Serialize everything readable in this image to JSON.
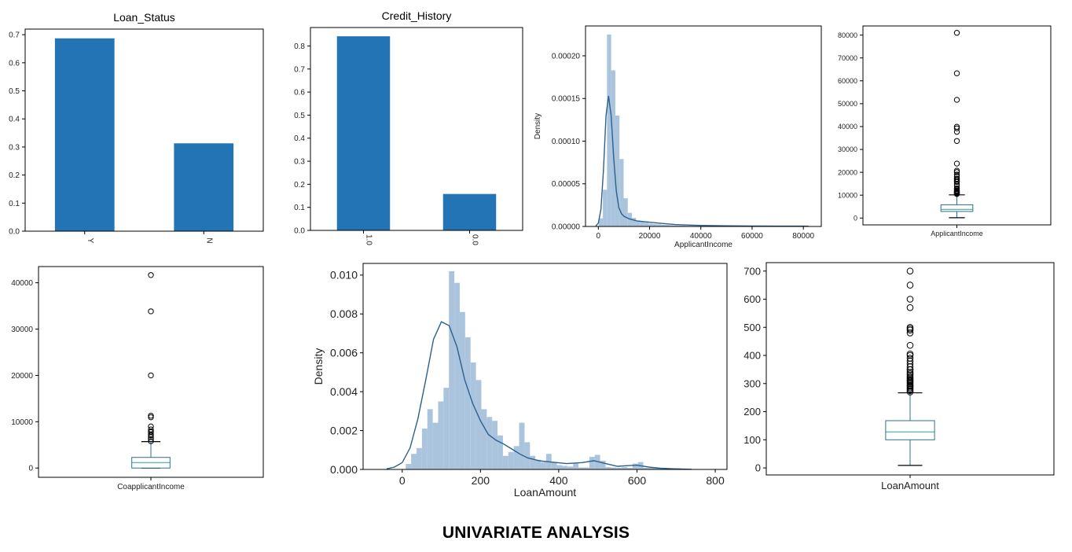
{
  "caption": "UNIVARIATE ANALYSIS",
  "colors": {
    "bar": "#2274b5",
    "hist": "#a9c4dc",
    "kde": "#2d5f8f",
    "box": "#2e6f8e",
    "median": "#2aa198",
    "axis": "#000000",
    "text": "#222222"
  },
  "chart_data": [
    {
      "id": "loan-status",
      "type": "bar",
      "title": "Loan_Status",
      "categories": [
        "Y",
        "N"
      ],
      "values": [
        0.687,
        0.313
      ],
      "ylim": [
        0,
        0.72
      ],
      "yticks": [
        0.0,
        0.1,
        0.2,
        0.3,
        0.4,
        0.5,
        0.6,
        0.7
      ],
      "ytick_labels": [
        "0.0",
        "0.1",
        "0.2",
        "0.3",
        "0.4",
        "0.5",
        "0.6",
        "0.7"
      ],
      "xtick_rotation": 90,
      "xlabel": "",
      "ylabel": ""
    },
    {
      "id": "credit-history",
      "type": "bar",
      "title": "Credit_History",
      "categories": [
        "1.0",
        "0.0"
      ],
      "values": [
        0.842,
        0.158
      ],
      "ylim": [
        0,
        0.88
      ],
      "yticks": [
        0.0,
        0.1,
        0.2,
        0.3,
        0.4,
        0.5,
        0.6,
        0.7,
        0.8
      ],
      "ytick_labels": [
        "0.0",
        "0.1",
        "0.2",
        "0.3",
        "0.4",
        "0.5",
        "0.6",
        "0.7",
        "0.8"
      ],
      "xtick_rotation": 90,
      "xlabel": "",
      "ylabel": ""
    },
    {
      "id": "applicant-income-dist",
      "type": "histogram",
      "title": "",
      "xlabel": "ApplicantIncome",
      "ylabel": "Density",
      "xlim": [
        -5000,
        87000
      ],
      "ylim": [
        0,
        0.000235
      ],
      "xticks": [
        0,
        20000,
        40000,
        60000,
        80000
      ],
      "xtick_labels": [
        "0",
        "20000",
        "40000",
        "60000",
        "80000"
      ],
      "yticks": [
        0,
        5e-05,
        0.0001,
        0.00015,
        0.0002
      ],
      "ytick_labels": [
        "0.00000",
        "0.00005",
        "0.00010",
        "0.00015",
        "0.00020"
      ],
      "bins": {
        "start": 150,
        "width": 1620,
        "heights": [
          9.5e-06,
          4.3e-05,
          0.000225,
          0.000183,
          0.00013,
          7.9e-05,
          3.3e-05,
          1.6e-05,
          1e-05,
          7e-06,
          5.5e-06,
          4.5e-06,
          3.5e-06,
          3e-06,
          2.5e-06,
          2e-06,
          1.8e-06,
          1.5e-06,
          1.2e-06,
          1e-06,
          1e-06,
          8e-07,
          8e-07,
          6e-07,
          6e-07,
          5e-07,
          4e-07,
          4e-07,
          3e-07,
          3e-07,
          3e-07,
          2e-07,
          2e-07,
          2e-07,
          2e-07,
          2e-07,
          2e-07,
          2e-07,
          2e-07,
          2e-07,
          1e-07,
          1e-07,
          1e-07,
          1e-07,
          1e-07,
          1e-07,
          1e-07,
          1e-07,
          1e-07,
          2e-07
        ]
      },
      "kde": {
        "x": [
          -1000,
          0,
          1000,
          2000,
          3000,
          4000,
          5000,
          6000,
          7000,
          8000,
          9000,
          10000,
          12000,
          15000,
          20000,
          25000,
          30000,
          40000,
          50000,
          60000,
          70000,
          80000,
          82000
        ],
        "y": [
          5e-07,
          4e-06,
          2e-05,
          6.5e-05,
          0.00013,
          0.000153,
          0.00013,
          8e-05,
          4.2e-05,
          2.2e-05,
          1.5e-05,
          1.2e-05,
          9e-06,
          6.5e-06,
          5e-06,
          3.5e-06,
          2.2e-06,
          1.2e-06,
          7e-07,
          5e-07,
          4e-07,
          4e-07,
          3e-07
        ]
      }
    },
    {
      "id": "applicant-income-box",
      "type": "box",
      "title": "",
      "xtick_labels": [
        "ApplicantIncome"
      ],
      "ylim": [
        -3000,
        84000
      ],
      "yticks": [
        0,
        10000,
        20000,
        30000,
        40000,
        50000,
        60000,
        70000,
        80000
      ],
      "ytick_labels": [
        "0",
        "10000",
        "20000",
        "30000",
        "40000",
        "50000",
        "60000",
        "70000",
        "80000"
      ],
      "whisker_low": 150,
      "q1": 2878,
      "median": 3812,
      "q3": 5795,
      "whisker_high": 10139,
      "outliers": [
        10500,
        10750,
        11000,
        11250,
        11500,
        11750,
        12000,
        12500,
        13000,
        14000,
        14800,
        15800,
        16100,
        16700,
        17200,
        18150,
        19000,
        20100,
        20700,
        23800,
        33700,
        37700,
        39200,
        39900,
        51700,
        63300,
        81000
      ]
    },
    {
      "id": "coapplicant-income-box",
      "type": "box",
      "title": "",
      "xtick_labels": [
        "CoapplicantIncome"
      ],
      "ylim": [
        -2000,
        43500
      ],
      "yticks": [
        0,
        10000,
        20000,
        30000,
        40000
      ],
      "ytick_labels": [
        "0",
        "10000",
        "20000",
        "30000",
        "40000"
      ],
      "whisker_low": 0,
      "q1": 0,
      "median": 1188,
      "q3": 2297,
      "whisker_high": 5701,
      "outliers": [
        5800,
        6250,
        6666,
        7101,
        7210,
        7750,
        7873,
        8333,
        8980,
        10968,
        11300,
        20000,
        33837,
        41667
      ]
    },
    {
      "id": "loan-amount-dist",
      "type": "histogram",
      "title": "",
      "xlabel": "LoanAmount",
      "ylabel": "Density",
      "xlim": [
        -100,
        830
      ],
      "ylim": [
        0,
        0.0106
      ],
      "xticks": [
        0,
        200,
        400,
        600,
        800
      ],
      "xtick_labels": [
        "0",
        "200",
        "400",
        "600",
        "800"
      ],
      "yticks": [
        0,
        0.002,
        0.004,
        0.006,
        0.008,
        0.01
      ],
      "ytick_labels": [
        "0.000",
        "0.002",
        "0.004",
        "0.006",
        "0.008",
        "0.010"
      ],
      "bins": {
        "start": 9,
        "width": 13.8,
        "heights": [
          0.00028,
          0.0008,
          0.0011,
          0.0021,
          0.0031,
          0.0024,
          0.0035,
          0.0042,
          0.0102,
          0.0096,
          0.0081,
          0.0068,
          0.0055,
          0.0046,
          0.0031,
          0.0027,
          0.0025,
          0.00175,
          0.0007,
          0.0009,
          0.0012,
          0.0024,
          0.0014,
          0.0007,
          0.0005,
          0.00038,
          0.0008,
          0.00036,
          0.00022,
          0.00018,
          0.00015,
          0.0003,
          0.0001,
          0.0001,
          0.00065,
          0.00075,
          0.00045,
          0.00012,
          0.0001,
          8e-05,
          0.00012,
          8e-05,
          0.0003,
          0.00038,
          8e-05,
          8e-05,
          8e-05,
          6e-05,
          6e-05,
          6e-05,
          6e-05
        ]
      },
      "kde": {
        "x": [
          -40,
          -20,
          0,
          20,
          40,
          60,
          80,
          100,
          120,
          140,
          160,
          180,
          200,
          220,
          240,
          260,
          280,
          300,
          320,
          350,
          380,
          420,
          460,
          490,
          520,
          550,
          580,
          600,
          630,
          660,
          700,
          740
        ],
        "y": [
          3e-05,
          0.00012,
          0.00035,
          0.0011,
          0.0026,
          0.0046,
          0.0067,
          0.0076,
          0.0074,
          0.0063,
          0.0046,
          0.0034,
          0.0025,
          0.0018,
          0.0015,
          0.0013,
          0.00105,
          0.0008,
          0.0006,
          0.00045,
          0.00038,
          0.0003,
          0.00035,
          0.00045,
          0.0003,
          0.00016,
          0.0002,
          0.00022,
          0.00012,
          6e-05,
          3e-05,
          1e-05
        ]
      }
    },
    {
      "id": "loan-amount-box",
      "type": "box",
      "title": "",
      "xtick_labels": [
        "LoanAmount"
      ],
      "ylim": [
        -25,
        730
      ],
      "yticks": [
        0,
        100,
        200,
        300,
        400,
        500,
        600,
        700
      ],
      "ytick_labels": [
        "0",
        "100",
        "200",
        "300",
        "400",
        "500",
        "600",
        "700"
      ],
      "whisker_low": 9,
      "q1": 100,
      "median": 128,
      "q3": 168,
      "whisker_high": 267,
      "outliers": [
        270,
        275,
        280,
        285,
        290,
        292,
        295,
        300,
        304,
        308,
        311,
        315,
        320,
        324,
        330,
        335,
        340,
        349,
        350,
        360,
        370,
        380,
        390,
        400,
        405,
        436,
        480,
        490,
        495,
        500,
        570,
        600,
        650,
        700
      ]
    }
  ]
}
